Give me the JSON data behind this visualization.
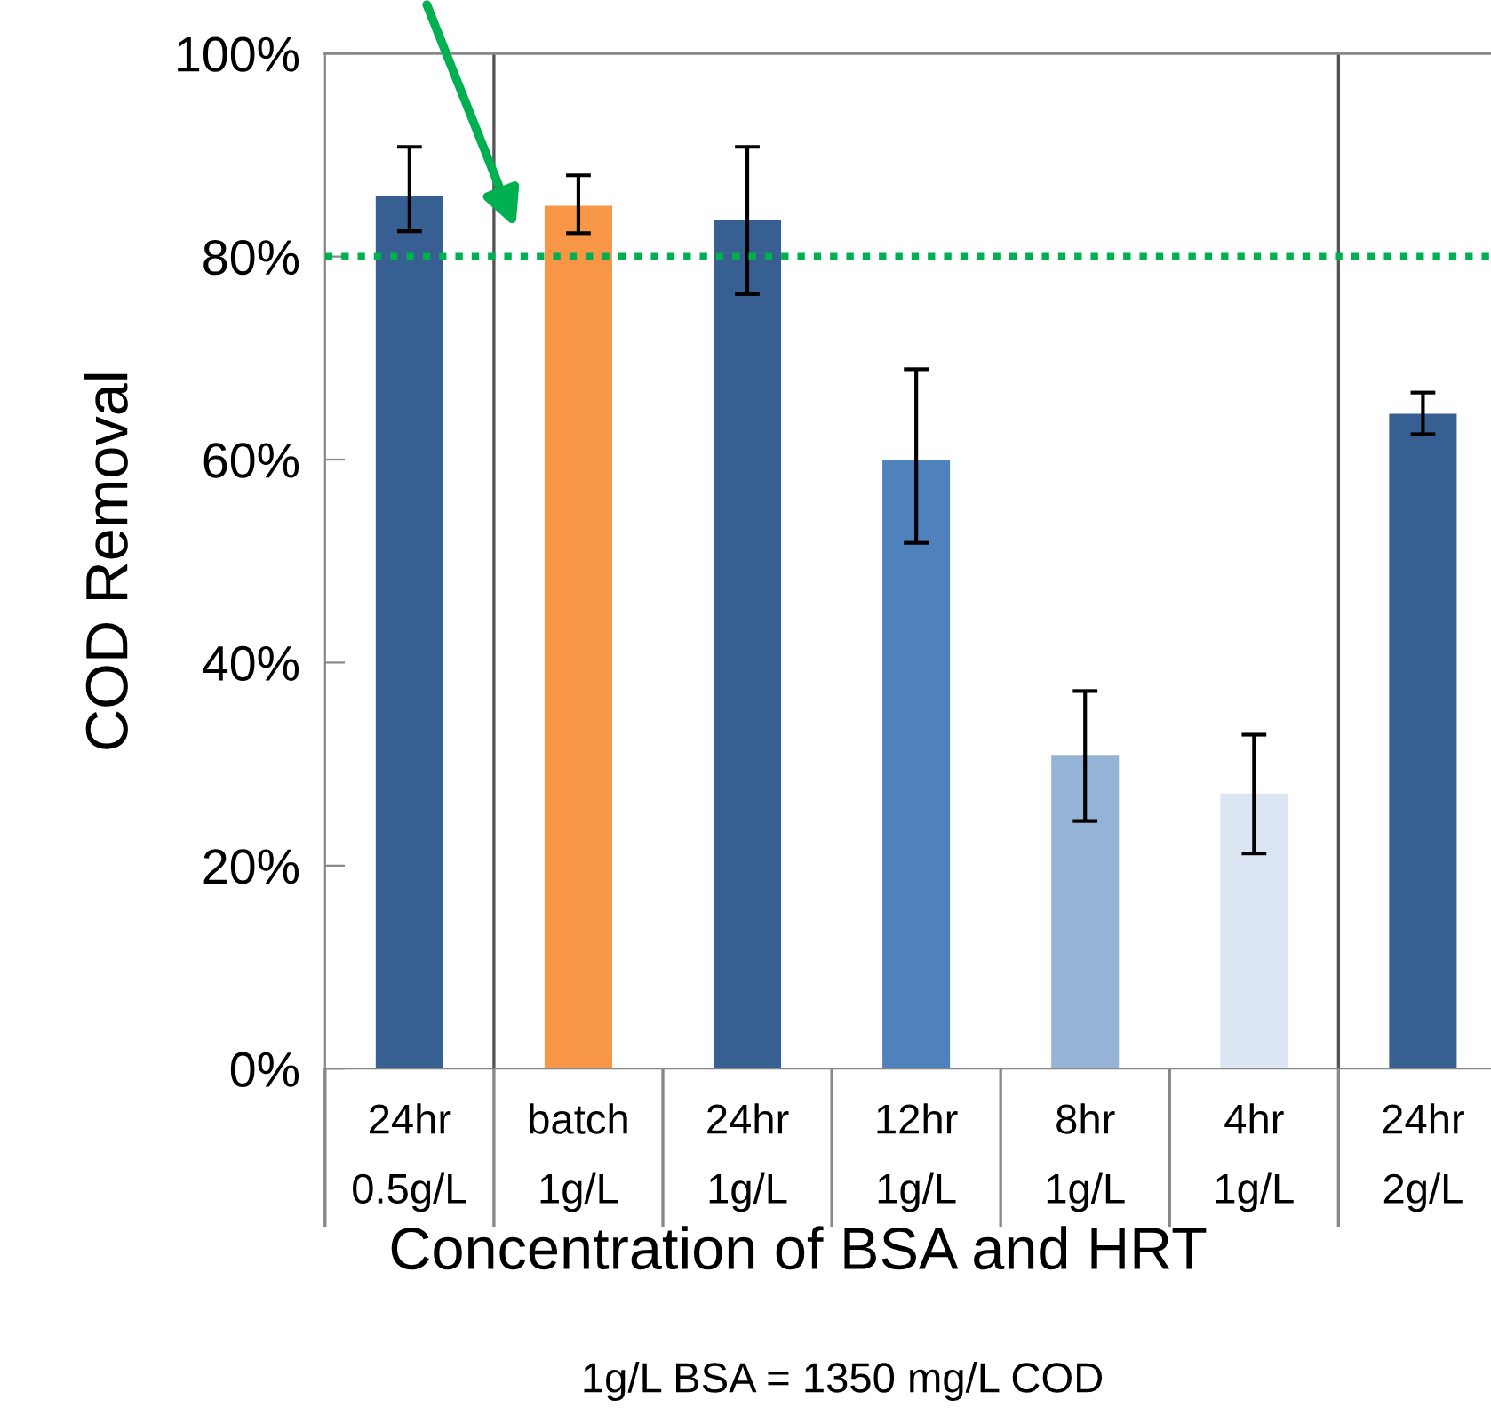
{
  "chart_data": {
    "type": "bar",
    "ylabel": "COD Removal",
    "xlabel": "Concentration of BSA and HRT",
    "annotations": [
      "1g/L BSA = 1350 mg/L COD"
    ],
    "categories": [
      "24hr\n0.5g/L",
      "batch\n1g/L",
      "24hr\n1g/L",
      "12hr\n1g/L",
      "8hr\n1g/L",
      "4hr\n1g/L",
      "24hr\n2g/L"
    ],
    "values": [
      86,
      85,
      83.6,
      60,
      30.9,
      27.1,
      64.5
    ],
    "errors": [
      [
        82.5,
        90.8
      ],
      [
        82.3,
        88
      ],
      [
        76.3,
        90.8
      ],
      [
        51.8,
        68.9
      ],
      [
        24.4,
        37.2
      ],
      [
        21.2,
        32.9
      ],
      [
        62.5,
        66.6
      ]
    ],
    "colors": [
      "#375f91",
      "#f79646",
      "#375f91",
      "#4f81bd",
      "#95b3d7",
      "#dce6f2",
      "#375f91"
    ],
    "ylim": [
      0,
      100
    ],
    "yticks": [
      {
        "value": 0,
        "label": "0%"
      },
      {
        "value": 20,
        "label": "20%"
      },
      {
        "value": 40,
        "label": "40%"
      },
      {
        "value": 60,
        "label": "60%"
      },
      {
        "value": 80,
        "label": "80%"
      },
      {
        "value": 100,
        "label": "100%"
      }
    ],
    "ref_lines": [
      {
        "axis": "y",
        "value": 80,
        "label": null,
        "color": "#00b050",
        "line_style": "dotted"
      }
    ],
    "grid": false,
    "legend": false
  }
}
